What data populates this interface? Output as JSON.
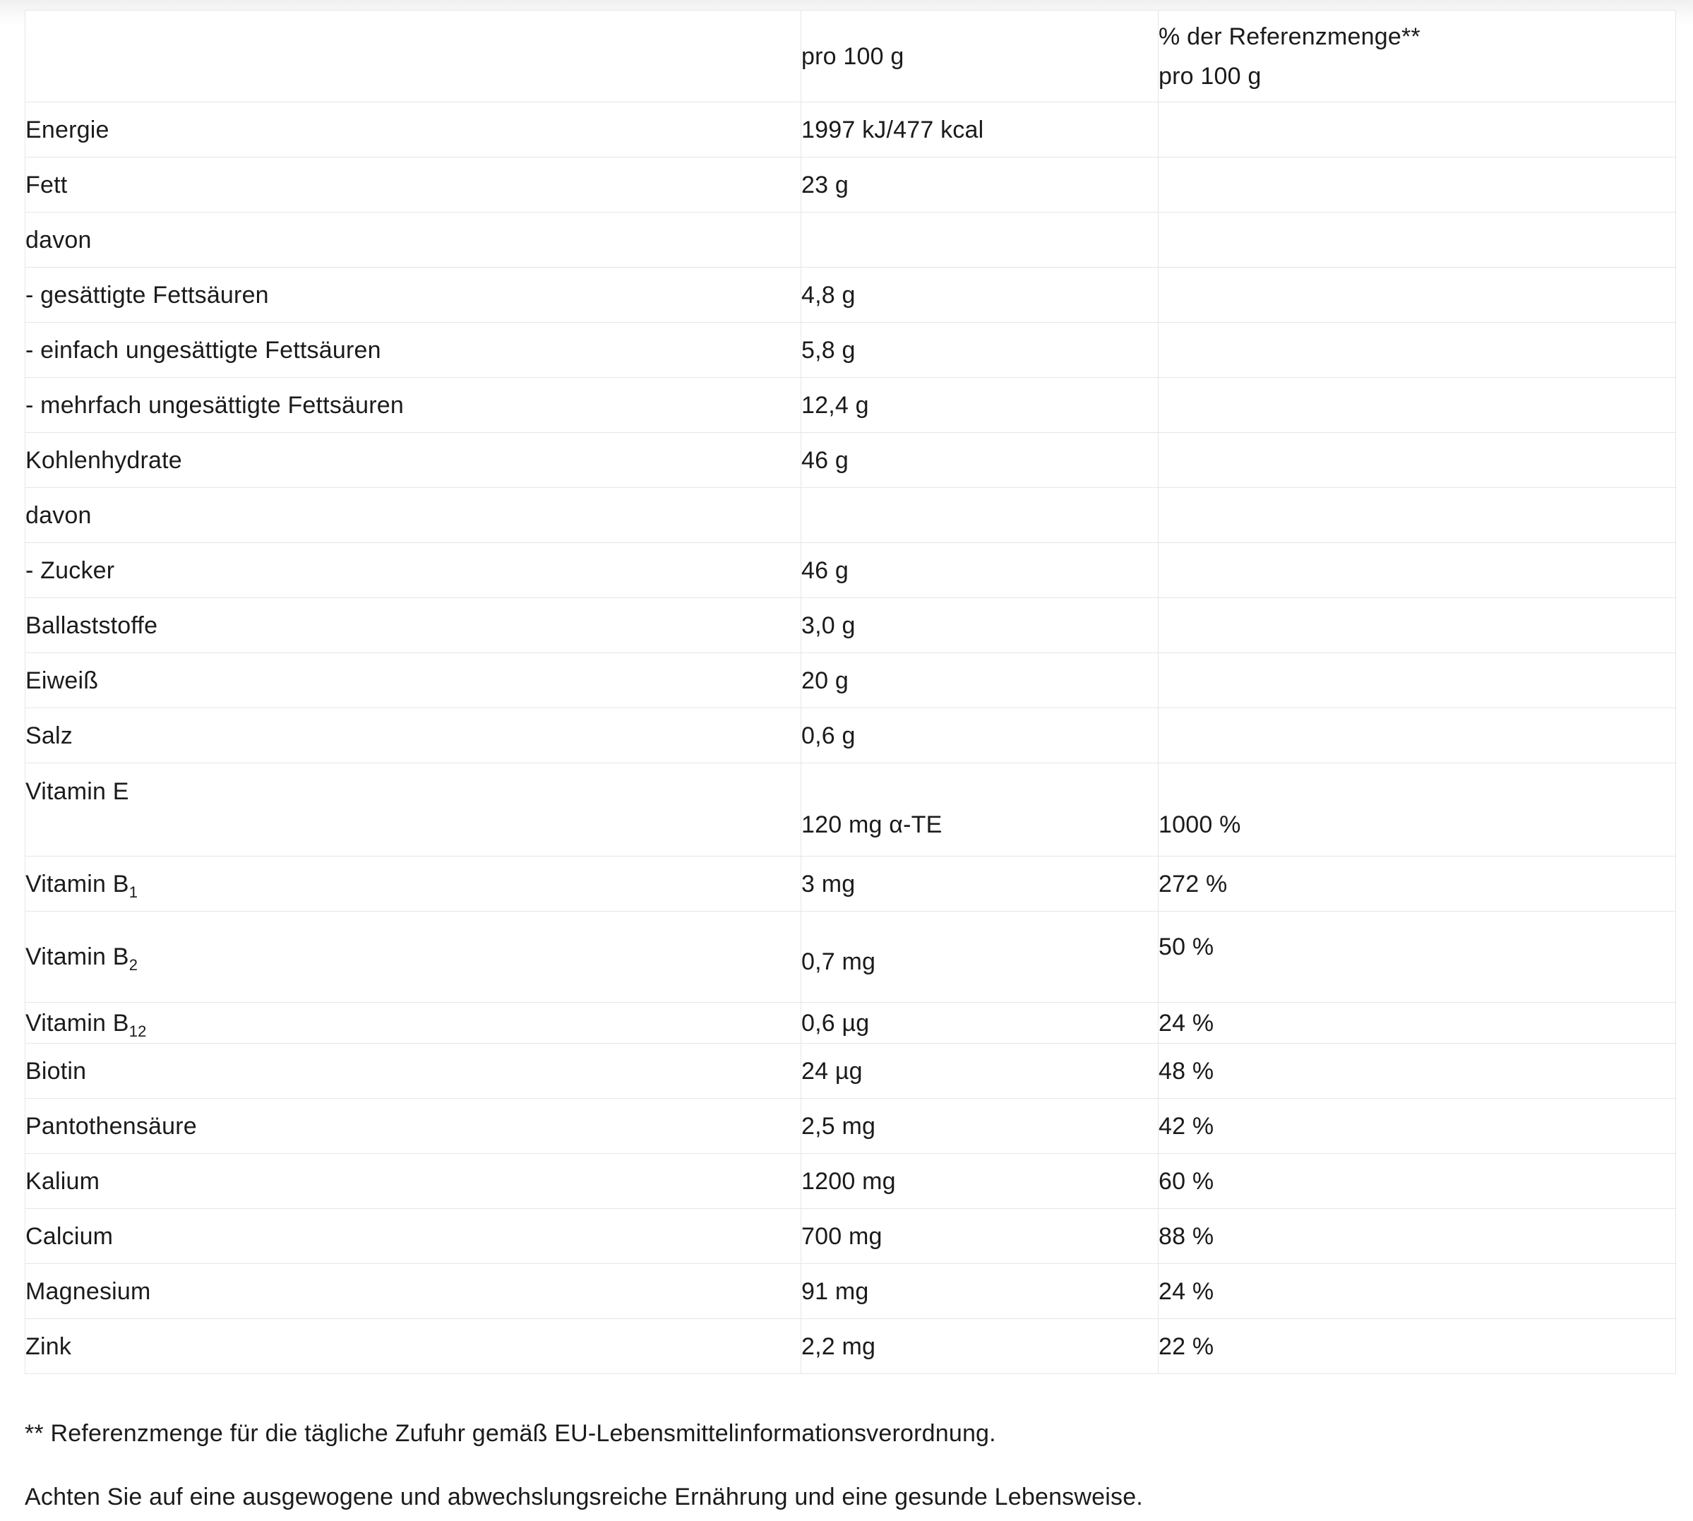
{
  "page": {
    "background": "#ffffff",
    "text_color": "#1b1b1b",
    "border_color": "#e6e6e6"
  },
  "table": {
    "header": {
      "col1": "",
      "col2": "pro 100 g",
      "col3_line1": "% der Referenzmenge**",
      "col3_line2": "pro 100 g"
    },
    "rows": [
      {
        "label": "Energie",
        "label_sub": "",
        "value": "1997 kJ/477 kcal",
        "pct": ""
      },
      {
        "label": "Fett",
        "label_sub": "",
        "value": "23 g",
        "pct": ""
      },
      {
        "label": "davon",
        "label_sub": "",
        "value": "",
        "pct": ""
      },
      {
        "label": "- gesättigte Fettsäuren",
        "label_sub": "",
        "value": "4,8 g",
        "pct": ""
      },
      {
        "label": "- einfach ungesättigte Fettsäuren",
        "label_sub": "",
        "value": "5,8 g",
        "pct": ""
      },
      {
        "label": "- mehrfach ungesättigte Fettsäuren",
        "label_sub": "",
        "value": "12,4 g",
        "pct": ""
      },
      {
        "label": "Kohlenhydrate",
        "label_sub": "",
        "value": "46 g",
        "pct": ""
      },
      {
        "label": "davon",
        "label_sub": "",
        "value": "",
        "pct": ""
      },
      {
        "label": "- Zucker",
        "label_sub": "",
        "value": "46 g",
        "pct": ""
      },
      {
        "label": "Ballaststoffe",
        "label_sub": "",
        "value": "3,0 g",
        "pct": ""
      },
      {
        "label": "Eiweiß",
        "label_sub": "",
        "value": "20 g",
        "pct": ""
      },
      {
        "label": "Salz",
        "label_sub": "",
        "value": "0,6 g",
        "pct": ""
      },
      {
        "label": "Vitamin E",
        "label_sub": "",
        "value": "120 mg α-TE",
        "pct": "1000 %"
      },
      {
        "label": "Vitamin B",
        "label_sub": "1",
        "value": "3 mg",
        "pct": "272 %"
      },
      {
        "label": "Vitamin B",
        "label_sub": "2",
        "value": "0,7 mg",
        "pct": "50 %"
      },
      {
        "label": "Vitamin B",
        "label_sub": "12",
        "value": "0,6 µg",
        "pct": "24 %"
      },
      {
        "label": "Biotin",
        "label_sub": "",
        "value": "24 µg",
        "pct": "48 %"
      },
      {
        "label": "Pantothensäure",
        "label_sub": "",
        "value": "2,5 mg",
        "pct": "42 %"
      },
      {
        "label": "Kalium",
        "label_sub": "",
        "value": "1200 mg",
        "pct": "60 %"
      },
      {
        "label": "Calcium",
        "label_sub": "",
        "value": "700 mg",
        "pct": "88 %"
      },
      {
        "label": "Magnesium",
        "label_sub": "",
        "value": "91 mg",
        "pct": "24 %"
      },
      {
        "label": "Zink",
        "label_sub": "",
        "value": "2,2 mg",
        "pct": "22 %"
      }
    ]
  },
  "footnotes": {
    "reference": "** Referenzmenge für die tägliche Zufuhr gemäß EU-Lebensmittelinformationsverordnung.",
    "advice": "Achten Sie auf eine ausgewogene und abwechslungsreiche Ernährung und eine gesunde Lebensweise."
  }
}
